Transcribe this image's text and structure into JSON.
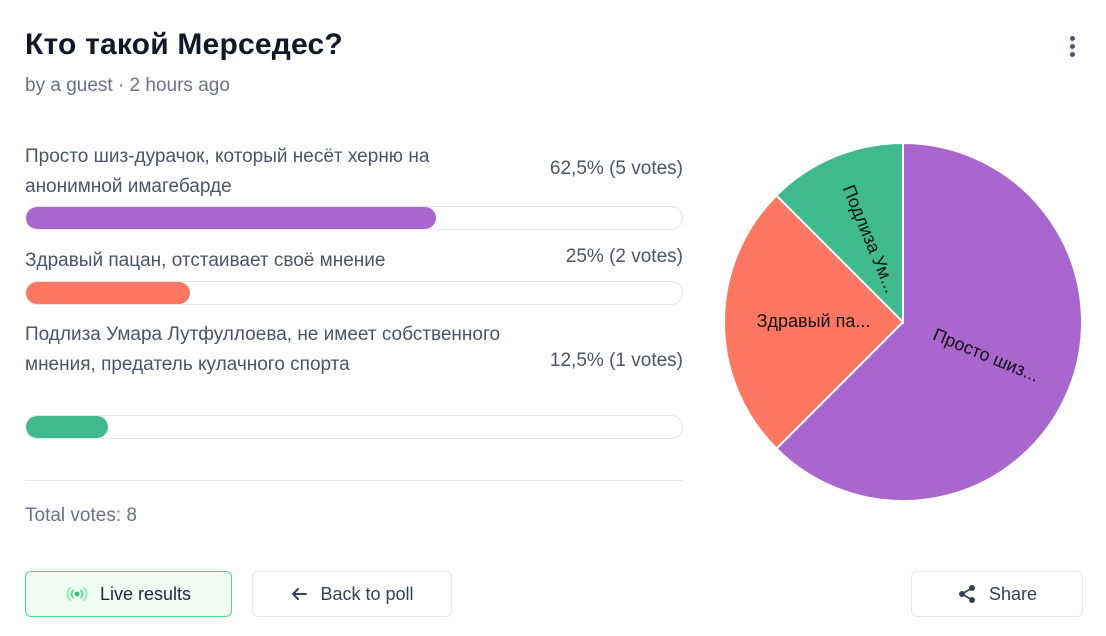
{
  "poll": {
    "title": "Кто такой Мерседес?",
    "meta": "by a guest · 2 hours ago",
    "total_votes": "Total votes: 8"
  },
  "options": [
    {
      "label": "Просто шиз-дурачок, который несёт херню на анонимной имагебарде",
      "value": "62,5% (5 votes)",
      "fraction": 0.625,
      "color": "#a966cf"
    },
    {
      "label": "Здравый пацан, отстаивает своё мнение",
      "value": "25% (2 votes)",
      "fraction": 0.25,
      "color": "#fe7762"
    },
    {
      "label": "Подлиза Умара Лутфуллоева, не имеет собственного мнения, предатель кулачного спорта",
      "value": "12,5% (1 votes)",
      "fraction": 0.125,
      "color": "#40b98f"
    }
  ],
  "buttons": {
    "live": "Live results",
    "back": "Back to poll",
    "share": "Share"
  },
  "icons": {
    "menu": "more-vertical-icon",
    "live": "broadcast-icon",
    "back": "arrow-left-icon",
    "share": "share-icon"
  },
  "chart_data": {
    "type": "pie",
    "categories": [
      "Просто шиз-дурачок, который несёт херню на анонимной имагебарде",
      "Здравый пацан, отстаивает своё мнение",
      "Подлиза Умара Лутфуллоева, не имеет собственного мнения, предатель кулачного спорта"
    ],
    "values": [
      5,
      2,
      1
    ],
    "colors": [
      "#a966cf",
      "#fe7762",
      "#40b98f"
    ],
    "slice_labels": [
      "Просто шиз...",
      "Здравый па...",
      "Подлиза Ум..."
    ]
  }
}
